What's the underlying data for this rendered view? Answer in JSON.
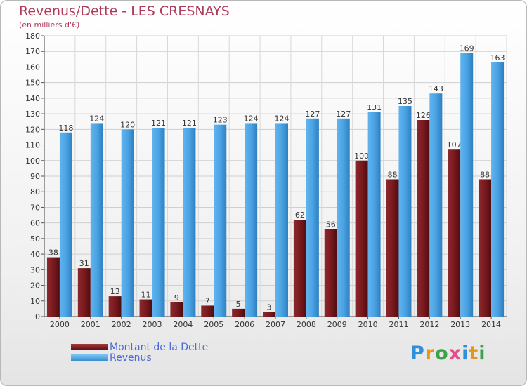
{
  "chart_data": {
    "type": "bar",
    "title": "Revenus/Dette - LES CRESNAYS",
    "subtitle": "(en milliers d'€)",
    "categories": [
      "2000",
      "2001",
      "2002",
      "2003",
      "2004",
      "2005",
      "2006",
      "2007",
      "2008",
      "2009",
      "2010",
      "2011",
      "2012",
      "2013",
      "2014"
    ],
    "series": [
      {
        "name": "Montant de la Dette",
        "color": "#7a1a1e",
        "values": [
          38,
          31,
          13,
          11,
          9,
          7,
          5,
          3,
          62,
          56,
          100,
          88,
          126,
          107,
          88
        ]
      },
      {
        "name": "Revenus",
        "color": "#4aa3e3",
        "values": [
          118,
          124,
          120,
          121,
          121,
          123,
          124,
          124,
          127,
          127,
          131,
          135,
          143,
          169,
          163
        ]
      }
    ],
    "ylim": [
      0,
      180
    ],
    "ytick_step": 10,
    "grid": true,
    "legend": "bottom-left"
  },
  "logo": {
    "letters": [
      "P",
      "r",
      "o",
      "x",
      "i",
      "t",
      "i"
    ],
    "colors": [
      "#2f8fd8",
      "#e8941a",
      "#3aa34a",
      "#e84a8a",
      "#2f8fd8",
      "#e8941a",
      "#3aa34a"
    ]
  }
}
